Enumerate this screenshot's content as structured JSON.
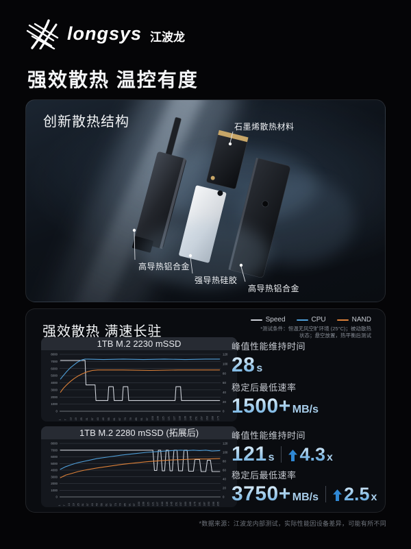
{
  "header": {
    "brand": "longsys",
    "brand_cn": "江波龙",
    "title": "强效散热 温控有度"
  },
  "structure_panel": {
    "title": "创新散热结构",
    "part_labels": [
      {
        "text": "石墨烯散热材料"
      },
      {
        "text": "高导热铝合金"
      },
      {
        "text": "强导热硅胶"
      },
      {
        "text": "高导热铝合金"
      }
    ]
  },
  "perf_panel": {
    "title": "强效散热 满速长驻",
    "legend": [
      {
        "label": "Speed",
        "color": "#ced2d9"
      },
      {
        "label": "CPU",
        "color": "#4f9fd9"
      },
      {
        "label": "NAND",
        "color": "#dd8138"
      }
    ],
    "conditions": [
      "*测试条件：恒温无风空旷环境 (25°C)；被动散热",
      "状态；悬空放置，热平衡后测试"
    ],
    "stats": [
      {
        "label": "峰值性能维持时间",
        "value": "28",
        "unit": "s"
      },
      {
        "label": "稳定后最低速率",
        "value": "1500+",
        "unit": "MB/s"
      },
      {
        "label": "峰值性能维持时间",
        "value": "121",
        "unit": "s",
        "delta": "4.3",
        "delta_unit": "x"
      },
      {
        "label": "稳定后最低速率",
        "value": "3750+",
        "unit": "MB/s",
        "delta": "2.5",
        "delta_unit": "x"
      }
    ]
  },
  "footnote": "*数据来源：江波龙内部测试，实际性能因设备差异，可能有所不同",
  "chart_data": [
    {
      "type": "line",
      "title": "1TB M.2 2230 mSSD",
      "x": {
        "min": 0,
        "max": 177,
        "tick_labels": [
          1,
          7,
          13,
          19,
          25,
          31,
          37,
          43,
          49,
          55,
          61,
          67,
          73,
          79,
          85,
          91,
          97,
          103,
          109,
          115,
          121,
          127,
          133,
          139,
          145,
          151,
          157,
          163,
          169,
          175
        ]
      },
      "y_left": {
        "min": 0,
        "max": 8000,
        "ticks": [
          0,
          1000,
          2000,
          3000,
          4000,
          5000,
          6000,
          7000,
          8000
        ]
      },
      "y_right": {
        "min": 0,
        "max": 120,
        "ticks": [
          0,
          20,
          40,
          60,
          80,
          100,
          120
        ]
      },
      "grid": true,
      "series": [
        {
          "name": "Speed",
          "axis": "left",
          "color": "#ced2d9",
          "points": [
            [
              1,
              7150
            ],
            [
              28,
              7150
            ],
            [
              29,
              3700
            ],
            [
              39,
              3700
            ],
            [
              40,
              1500
            ],
            [
              53,
              1500
            ],
            [
              54,
              3450
            ],
            [
              59,
              3450
            ],
            [
              60,
              1500
            ],
            [
              69,
              1500
            ],
            [
              70,
              3450
            ],
            [
              75,
              3450
            ],
            [
              76,
              1500
            ],
            [
              127,
              1500
            ],
            [
              128,
              3450
            ],
            [
              133,
              3450
            ],
            [
              134,
              1500
            ],
            [
              176,
              1500
            ]
          ]
        },
        {
          "name": "CPU",
          "axis": "right",
          "color": "#4f9fd9",
          "points": [
            [
              1,
              68
            ],
            [
              4,
              75
            ],
            [
              8,
              84
            ],
            [
              12,
              92
            ],
            [
              16,
              98
            ],
            [
              20,
              104
            ],
            [
              24,
              108
            ],
            [
              28,
              110
            ],
            [
              48,
              109
            ],
            [
              70,
              110
            ],
            [
              92,
              109
            ],
            [
              115,
              110
            ],
            [
              138,
              109
            ],
            [
              160,
              110
            ],
            [
              176,
              110
            ]
          ]
        },
        {
          "name": "NAND",
          "axis": "right",
          "color": "#dd8138",
          "points": [
            [
              1,
              40
            ],
            [
              4,
              48
            ],
            [
              8,
              56
            ],
            [
              12,
              63
            ],
            [
              16,
              69
            ],
            [
              20,
              74
            ],
            [
              25,
              79
            ],
            [
              30,
              83
            ],
            [
              36,
              86
            ],
            [
              42,
              87
            ],
            [
              70,
              87
            ],
            [
              100,
              86
            ],
            [
              130,
              87
            ],
            [
              160,
              87
            ],
            [
              176,
              87
            ]
          ]
        }
      ]
    },
    {
      "type": "line",
      "title": "1TB M.2 2280 mSSD (拓展后)",
      "x": {
        "min": 0,
        "max": 207,
        "tick_labels": [
          1,
          7,
          13,
          19,
          25,
          31,
          37,
          43,
          49,
          55,
          61,
          67,
          73,
          79,
          85,
          91,
          97,
          103,
          109,
          115,
          121,
          127,
          133,
          139,
          145,
          151,
          157,
          163,
          169,
          175,
          181,
          187,
          193,
          199,
          205
        ]
      },
      "y_left": {
        "min": 0,
        "max": 8000,
        "ticks": [
          0,
          1000,
          2000,
          3000,
          4000,
          5000,
          6000,
          7000,
          8000
        ]
      },
      "y_right": {
        "min": 0,
        "max": 120,
        "ticks": [
          0,
          20,
          40,
          60,
          80,
          100,
          120
        ]
      },
      "grid": true,
      "series": [
        {
          "name": "Speed",
          "axis": "left",
          "color": "#ced2d9",
          "points": [
            [
              1,
              7000
            ],
            [
              120,
              7000
            ],
            [
              122,
              3950
            ],
            [
              125,
              3950
            ],
            [
              127,
              7000
            ],
            [
              130,
              7000
            ],
            [
              132,
              3900
            ],
            [
              135,
              3900
            ],
            [
              137,
              7000
            ],
            [
              140,
              7000
            ],
            [
              142,
              3900
            ],
            [
              145,
              3900
            ],
            [
              147,
              7000
            ],
            [
              151,
              7000
            ],
            [
              153,
              3900
            ],
            [
              158,
              3900
            ],
            [
              160,
              7000
            ],
            [
              164,
              7000
            ],
            [
              166,
              3850
            ],
            [
              172,
              3850
            ],
            [
              174,
              5600
            ],
            [
              180,
              5600
            ],
            [
              182,
              3800
            ],
            [
              188,
              3800
            ],
            [
              190,
              5500
            ],
            [
              194,
              5500
            ],
            [
              196,
              3800
            ],
            [
              206,
              3800
            ]
          ]
        },
        {
          "name": "CPU",
          "axis": "right",
          "color": "#4f9fd9",
          "points": [
            [
              1,
              62
            ],
            [
              8,
              68
            ],
            [
              16,
              73
            ],
            [
              24,
              77
            ],
            [
              32,
              80
            ],
            [
              48,
              86
            ],
            [
              64,
              90
            ],
            [
              80,
              94
            ],
            [
              96,
              97
            ],
            [
              112,
              100
            ],
            [
              128,
              102
            ],
            [
              144,
              104
            ],
            [
              156,
              105
            ],
            [
              164,
              104
            ],
            [
              172,
              105
            ],
            [
              180,
              104
            ],
            [
              188,
              105
            ],
            [
              196,
              103
            ],
            [
              206,
              104
            ]
          ]
        },
        {
          "name": "NAND",
          "axis": "right",
          "color": "#dd8138",
          "points": [
            [
              1,
              43
            ],
            [
              8,
              49
            ],
            [
              16,
              53
            ],
            [
              24,
              57
            ],
            [
              32,
              60
            ],
            [
              48,
              65
            ],
            [
              64,
              69
            ],
            [
              80,
              73
            ],
            [
              96,
              76
            ],
            [
              112,
              79
            ],
            [
              128,
              81
            ],
            [
              144,
              83
            ],
            [
              160,
              84
            ],
            [
              176,
              85
            ],
            [
              190,
              85
            ],
            [
              206,
              86
            ]
          ]
        }
      ]
    }
  ]
}
